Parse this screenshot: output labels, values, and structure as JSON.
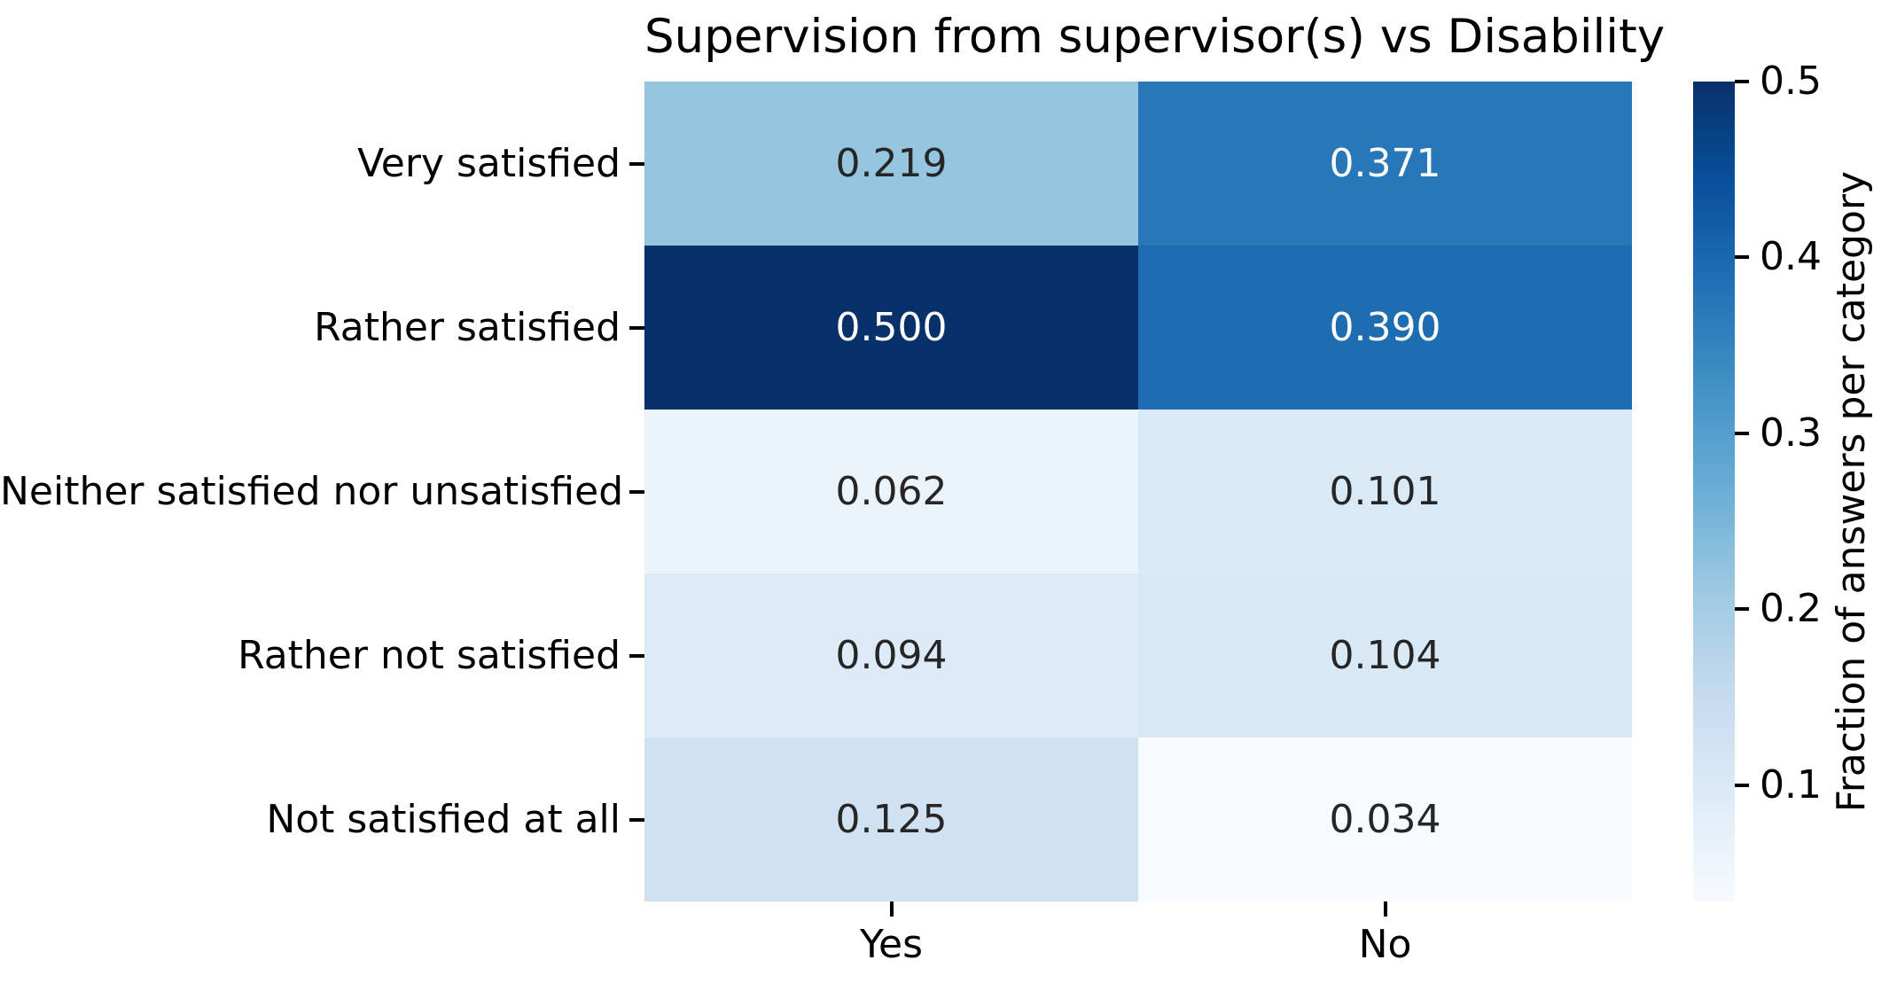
{
  "title": "Supervision from supervisor(s) vs Disability",
  "heatmap": {
    "row_labels": [
      "Very satisfied",
      "Rather satisfied",
      "Neither satisfied nor unsatisfied",
      "Rather not satisfied",
      "Not satisfied at all"
    ],
    "col_labels": [
      "Yes",
      "No"
    ],
    "cells": [
      [
        {
          "label": "0.219",
          "bg": "#95c5df",
          "fg": "#262626"
        },
        {
          "label": "0.371",
          "bg": "#2878b9",
          "fg": "#ffffff"
        }
      ],
      [
        {
          "label": "0.500",
          "bg": "#08306b",
          "fg": "#ffffff"
        },
        {
          "label": "0.390",
          "bg": "#1e6db2",
          "fg": "#ffffff"
        }
      ],
      [
        {
          "label": "0.062",
          "bg": "#ebf3fb",
          "fg": "#262626"
        },
        {
          "label": "0.101",
          "bg": "#dae9f6",
          "fg": "#262626"
        }
      ],
      [
        {
          "label": "0.094",
          "bg": "#ddeaf7",
          "fg": "#262626"
        },
        {
          "label": "0.104",
          "bg": "#d9e8f5",
          "fg": "#262626"
        }
      ],
      [
        {
          "label": "0.125",
          "bg": "#d0e2f2",
          "fg": "#262626"
        },
        {
          "label": "0.034",
          "bg": "#f7fbff",
          "fg": "#262626"
        }
      ]
    ]
  },
  "colorbar": {
    "label": "Fraction of answers per category",
    "tick_labels": [
      "0.5",
      "0.4",
      "0.3",
      "0.2",
      "0.1"
    ],
    "tick_values": [
      0.5,
      0.4,
      0.3,
      0.2,
      0.1
    ],
    "vmin": 0.034,
    "vmax": 0.5,
    "gradient_bottom_to_top": [
      "#f7fbff",
      "#deebf7",
      "#c6dbef",
      "#9ecae1",
      "#6baed6",
      "#4292c6",
      "#2171b5",
      "#08519c",
      "#08306b"
    ]
  },
  "chart_data": {
    "type": "heatmap",
    "title": "Supervision from supervisor(s) vs Disability",
    "rows": [
      "Very satisfied",
      "Rather satisfied",
      "Neither satisfied nor unsatisfied",
      "Rather not satisfied",
      "Not satisfied at all"
    ],
    "columns": [
      "Yes",
      "No"
    ],
    "values": [
      [
        0.219,
        0.371
      ],
      [
        0.5,
        0.39
      ],
      [
        0.062,
        0.101
      ],
      [
        0.094,
        0.104
      ],
      [
        0.125,
        0.034
      ]
    ],
    "colormap": "Blues",
    "vmin": 0.034,
    "vmax": 0.5,
    "colorbar_label": "Fraction of answers per category",
    "colorbar_ticks": [
      0.1,
      0.2,
      0.3,
      0.4,
      0.5
    ],
    "annotations_shown": true,
    "legend_position": "right-colorbar",
    "grid": false
  }
}
